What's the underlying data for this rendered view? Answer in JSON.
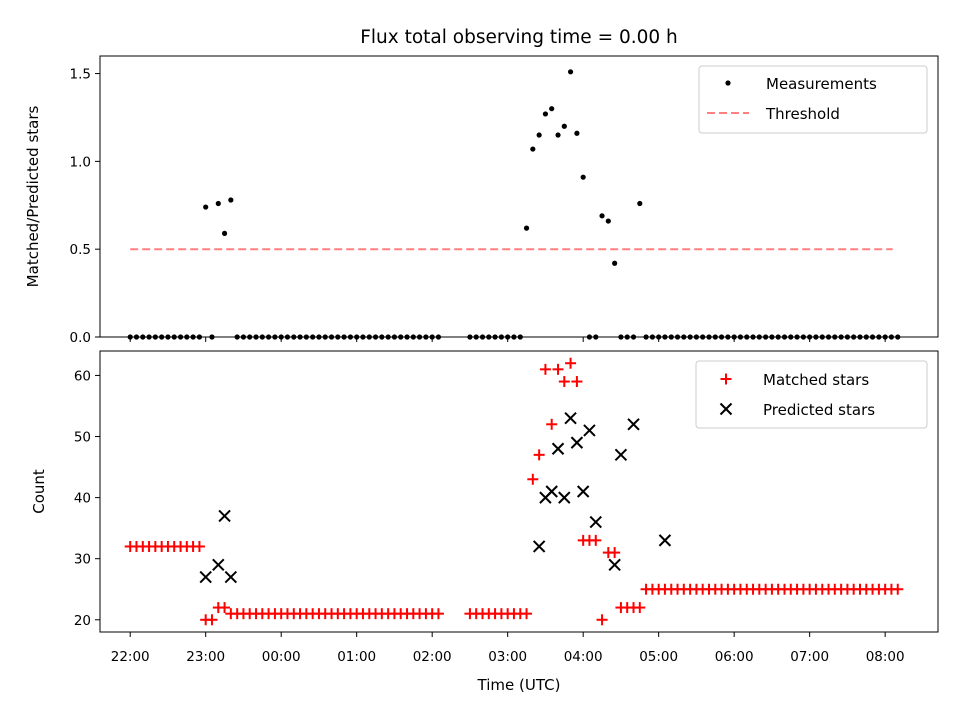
{
  "title": "Flux total observing time = 0.00 h",
  "chart_data": [
    {
      "type": "scatter",
      "ylabel": "Matched/Predicted stars",
      "xlim": [
        21.6,
        8.7
      ],
      "ylim": [
        0.0,
        1.6
      ],
      "y_ticks": [
        0.0,
        0.5,
        1.0,
        1.5
      ],
      "y_tick_labels": [
        "0.0",
        "0.5",
        "1.0",
        "1.5"
      ],
      "legend": {
        "placement": "top-right",
        "entries": [
          "Measurements",
          "Threshold"
        ]
      },
      "threshold": {
        "name": "Threshold",
        "value": 0.5,
        "x_start": 22.0,
        "x_end": 8.1,
        "color": "#ff8080"
      },
      "series": [
        {
          "name": "Measurements",
          "color": "#000000",
          "x": [
            22.0,
            22.083,
            22.167,
            22.25,
            22.333,
            22.417,
            22.5,
            22.583,
            22.667,
            22.75,
            22.833,
            22.917,
            23.0,
            23.083,
            23.167,
            23.25,
            23.333,
            23.417,
            23.5,
            23.583,
            23.667,
            23.75,
            23.833,
            23.917,
            24.0,
            24.083,
            24.167,
            24.25,
            24.333,
            24.417,
            24.5,
            24.583,
            24.667,
            24.75,
            24.833,
            24.917,
            25.0,
            25.083,
            25.167,
            25.25,
            25.333,
            25.417,
            25.5,
            25.583,
            25.667,
            25.75,
            25.833,
            25.917,
            26.0,
            26.083,
            26.5,
            26.583,
            26.667,
            26.75,
            26.833,
            26.917,
            27.0,
            27.083,
            27.167,
            27.25,
            27.333,
            27.417,
            27.5,
            27.583,
            27.667,
            27.75,
            27.833,
            27.917,
            28.0,
            28.083,
            28.167,
            28.25,
            28.333,
            28.417,
            28.5,
            28.583,
            28.667,
            28.75,
            28.833,
            28.917,
            29.0,
            29.083,
            29.167,
            29.25,
            29.333,
            29.417,
            29.5,
            29.583,
            29.667,
            29.75,
            29.833,
            29.917,
            30.0,
            30.083,
            30.167,
            30.25,
            30.333,
            30.417,
            30.5,
            30.583,
            30.667,
            30.75,
            30.833,
            30.917,
            31.0,
            31.083,
            31.167,
            31.25,
            31.333,
            31.417,
            31.5,
            31.583,
            31.667,
            31.75,
            31.833,
            31.917,
            32.0,
            32.083,
            32.167
          ],
          "y": [
            0,
            0,
            0,
            0,
            0,
            0,
            0,
            0,
            0,
            0,
            0,
            0,
            0.74,
            0,
            0.76,
            0.59,
            0.78,
            0,
            0,
            0,
            0,
            0,
            0,
            0,
            0,
            0,
            0,
            0,
            0,
            0,
            0,
            0,
            0,
            0,
            0,
            0,
            0,
            0,
            0,
            0,
            0,
            0,
            0,
            0,
            0,
            0,
            0,
            0,
            0,
            0,
            0,
            0,
            0,
            0,
            0,
            0,
            0,
            0,
            0,
            0.62,
            1.07,
            1.15,
            1.27,
            1.3,
            1.15,
            1.2,
            1.51,
            1.16,
            0.91,
            0,
            0,
            0.69,
            0.66,
            0.42,
            0,
            0,
            0,
            0.76,
            0,
            0,
            0,
            0,
            0,
            0,
            0,
            0,
            0,
            0,
            0,
            0,
            0,
            0,
            0,
            0,
            0,
            0,
            0,
            0,
            0,
            0,
            0,
            0,
            0,
            0,
            0,
            0,
            0,
            0,
            0,
            0,
            0,
            0,
            0,
            0,
            0,
            0,
            0,
            0,
            0
          ]
        }
      ]
    },
    {
      "type": "scatter",
      "title": "",
      "xlabel": "Time (UTC)",
      "ylabel": "Count",
      "xlim": [
        21.6,
        8.7
      ],
      "ylim": [
        18,
        64
      ],
      "x_ticks": [
        22,
        23,
        24,
        25,
        26,
        27,
        28,
        29,
        30,
        31,
        32
      ],
      "x_tick_labels": [
        "22:00",
        "23:00",
        "00:00",
        "01:00",
        "02:00",
        "03:00",
        "04:00",
        "05:00",
        "06:00",
        "07:00",
        "08:00"
      ],
      "y_ticks": [
        20,
        30,
        40,
        50,
        60
      ],
      "y_tick_labels": [
        "20",
        "30",
        "40",
        "50",
        "60"
      ],
      "legend": {
        "placement": "top-right",
        "entries": [
          "Matched stars",
          "Predicted stars"
        ]
      },
      "series": [
        {
          "name": "Matched stars",
          "marker": "plus",
          "color": "#ff0000",
          "x": [
            22.0,
            22.083,
            22.167,
            22.25,
            22.333,
            22.417,
            22.5,
            22.583,
            22.667,
            22.75,
            22.833,
            22.917,
            23.0,
            23.083,
            23.167,
            23.25,
            23.333,
            23.417,
            23.5,
            23.583,
            23.667,
            23.75,
            23.833,
            23.917,
            24.0,
            24.083,
            24.167,
            24.25,
            24.333,
            24.417,
            24.5,
            24.583,
            24.667,
            24.75,
            24.833,
            24.917,
            25.0,
            25.083,
            25.167,
            25.25,
            25.333,
            25.417,
            25.5,
            25.583,
            25.667,
            25.75,
            25.833,
            25.917,
            26.0,
            26.083,
            26.5,
            26.583,
            26.667,
            26.75,
            26.833,
            26.917,
            27.0,
            27.083,
            27.167,
            27.25,
            27.333,
            27.417,
            27.5,
            27.583,
            27.667,
            27.75,
            27.833,
            27.917,
            28.0,
            28.083,
            28.167,
            28.25,
            28.333,
            28.417,
            28.5,
            28.583,
            28.667,
            28.75,
            28.833,
            28.917,
            29.0,
            29.083,
            29.167,
            29.25,
            29.333,
            29.417,
            29.5,
            29.583,
            29.667,
            29.75,
            29.833,
            29.917,
            30.0,
            30.083,
            30.167,
            30.25,
            30.333,
            30.417,
            30.5,
            30.583,
            30.667,
            30.75,
            30.833,
            30.917,
            31.0,
            31.083,
            31.167,
            31.25,
            31.333,
            31.417,
            31.5,
            31.583,
            31.667,
            31.75,
            31.833,
            31.917,
            32.0,
            32.083,
            32.167
          ],
          "y": [
            32,
            32,
            32,
            32,
            32,
            32,
            32,
            32,
            32,
            32,
            32,
            32,
            20,
            20,
            22,
            22,
            21,
            21,
            21,
            21,
            21,
            21,
            21,
            21,
            21,
            21,
            21,
            21,
            21,
            21,
            21,
            21,
            21,
            21,
            21,
            21,
            21,
            21,
            21,
            21,
            21,
            21,
            21,
            21,
            21,
            21,
            21,
            21,
            21,
            21,
            21,
            21,
            21,
            21,
            21,
            21,
            21,
            21,
            21,
            21,
            43,
            47,
            61,
            52,
            61,
            59,
            62,
            59,
            33,
            33,
            33,
            20,
            31,
            31,
            22,
            22,
            22,
            22,
            25,
            25,
            25,
            25,
            25,
            25,
            25,
            25,
            25,
            25,
            25,
            25,
            25,
            25,
            25,
            25,
            25,
            25,
            25,
            25,
            25,
            25,
            25,
            25,
            25,
            25,
            25,
            25,
            25,
            25,
            25,
            25,
            25,
            25,
            25,
            25,
            25,
            25,
            25,
            25,
            25
          ]
        },
        {
          "name": "Predicted stars",
          "marker": "x",
          "color": "#000000",
          "x": [
            23.0,
            23.167,
            23.25,
            23.333,
            27.417,
            27.5,
            27.583,
            27.667,
            27.75,
            27.833,
            27.917,
            28.0,
            28.083,
            28.167,
            28.417,
            28.5,
            28.667,
            29.083
          ],
          "y": [
            27,
            29,
            37,
            27,
            32,
            40,
            41,
            48,
            40,
            53,
            49,
            41,
            51,
            36,
            29,
            47,
            52,
            33
          ]
        }
      ]
    }
  ]
}
